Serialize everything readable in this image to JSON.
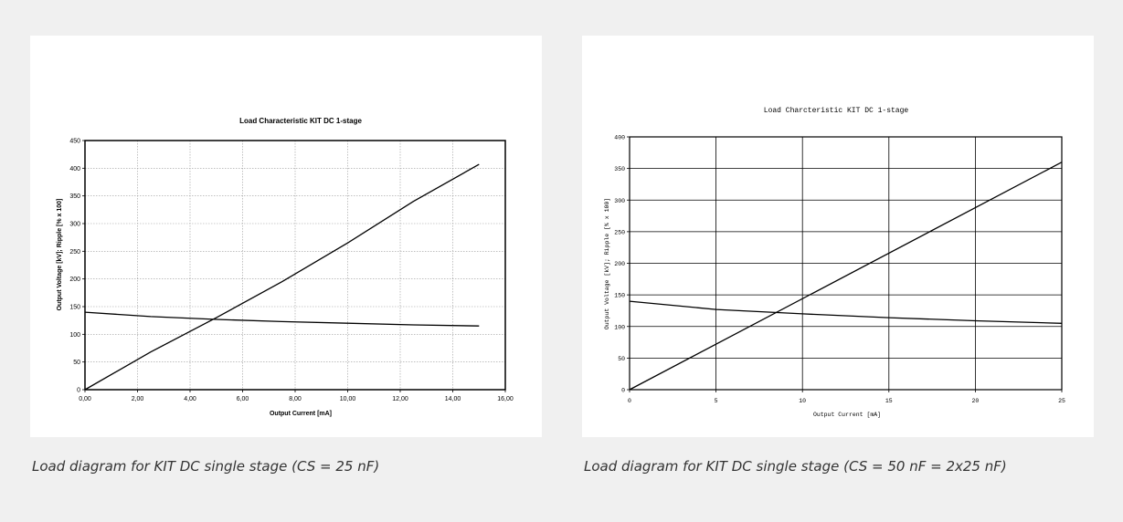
{
  "captions": {
    "left": "Load diagram for KIT DC single stage (CS = 25 nF)",
    "right": "Load diagram for KIT DC single stage (CS = 50 nF = 2x25 nF)"
  },
  "colors": {
    "background": "#f0f0f0",
    "panel": "#ffffff",
    "line": "#000000",
    "caption": "#333333"
  },
  "chart_data": [
    {
      "type": "line",
      "title": "Load Characteristic KIT DC 1-stage",
      "xlabel": "Output Current [mA]",
      "ylabel": "Output Voltage [kV]; Ripple [% x 100]",
      "xlim": [
        0,
        16
      ],
      "ylim": [
        0,
        450
      ],
      "x_ticks": [
        0,
        2,
        4,
        6,
        8,
        10,
        12,
        14,
        16
      ],
      "x_tick_labels": [
        "0,00",
        "2,00",
        "4,00",
        "6,00",
        "8,00",
        "10,00",
        "12,00",
        "14,00",
        "16,00"
      ],
      "y_ticks": [
        0,
        50,
        100,
        150,
        200,
        250,
        300,
        350,
        400,
        450
      ],
      "y_tick_labels": [
        "0",
        "50",
        "100",
        "150",
        "200",
        "250",
        "300",
        "350",
        "400",
        "450"
      ],
      "grid": "dotted",
      "series": [
        {
          "x": [
            0,
            2.5,
            5,
            7.5,
            10,
            12.5,
            15
          ],
          "values": [
            0,
            68,
            130,
            195,
            265,
            340,
            407
          ]
        },
        {
          "x": [
            0,
            2.5,
            5,
            7.5,
            10,
            12.5,
            15
          ],
          "values": [
            140,
            132,
            127,
            123,
            120,
            117,
            115
          ]
        }
      ]
    },
    {
      "type": "line",
      "title": "Load Charcteristic KIT DC 1-stage",
      "xlabel": "Output Current [mA]",
      "ylabel": "Output Voltage [kV]; Ripple [% x 100]",
      "xlim": [
        0,
        25
      ],
      "ylim": [
        0,
        400
      ],
      "x_ticks": [
        0,
        5,
        10,
        15,
        20,
        25
      ],
      "x_tick_labels": [
        "0",
        "5",
        "10",
        "15",
        "20",
        "25"
      ],
      "y_ticks": [
        0,
        50,
        100,
        150,
        200,
        250,
        300,
        350,
        400
      ],
      "y_tick_labels": [
        "0",
        "50",
        "100",
        "150",
        "200",
        "250",
        "300",
        "350",
        "400"
      ],
      "grid": "solid",
      "series": [
        {
          "x": [
            0,
            25
          ],
          "values": [
            0,
            360
          ]
        },
        {
          "x": [
            0,
            5,
            10,
            15,
            20,
            25
          ],
          "values": [
            140,
            127,
            120,
            114,
            109,
            105
          ]
        }
      ]
    }
  ]
}
